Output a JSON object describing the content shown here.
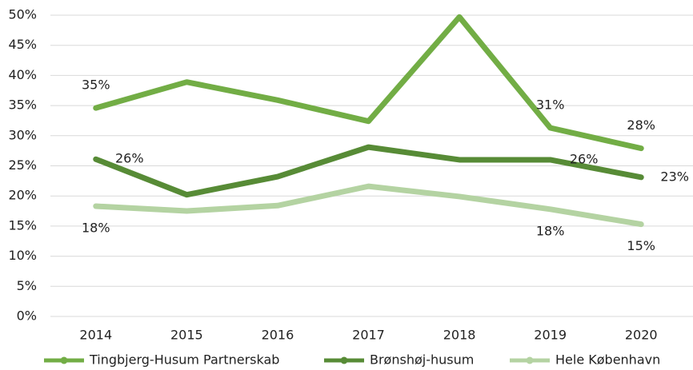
{
  "chart_data": {
    "type": "line",
    "categories": [
      "2014",
      "2015",
      "2016",
      "2017",
      "2018",
      "2019",
      "2020"
    ],
    "series": [
      {
        "name": "Tingbjerg-Husum Partnerskab",
        "color": "#72ad45",
        "values": [
          34.6,
          38.9,
          35.9,
          32.4,
          49.7,
          31.3,
          27.9
        ],
        "value_labels": [
          "35%",
          null,
          null,
          null,
          null,
          "31%",
          "28%"
        ]
      },
      {
        "name": "Brønshøj-husum",
        "color": "#578b36",
        "values": [
          26.1,
          20.2,
          23.2,
          28.1,
          26.0,
          26.0,
          23.1
        ],
        "value_labels": [
          "26%",
          null,
          null,
          null,
          null,
          "26%",
          "23%"
        ]
      },
      {
        "name": "Hele København",
        "color": "#b4d3a2",
        "values": [
          18.3,
          17.5,
          18.4,
          21.6,
          19.9,
          17.8,
          15.3
        ],
        "value_labels": [
          "18%",
          null,
          null,
          null,
          null,
          "18%",
          "15%"
        ]
      }
    ],
    "ylim": [
      0,
      50
    ],
    "yticks": [
      {
        "value": 0,
        "label": "0%"
      },
      {
        "value": 5,
        "label": "5%"
      },
      {
        "value": 10,
        "label": "10%"
      },
      {
        "value": 15,
        "label": "15%"
      },
      {
        "value": 20,
        "label": "20%"
      },
      {
        "value": 25,
        "label": "25%"
      },
      {
        "value": 30,
        "label": "30%"
      },
      {
        "value": 35,
        "label": "35%"
      },
      {
        "value": 40,
        "label": "40%"
      },
      {
        "value": 45,
        "label": "45%"
      },
      {
        "value": 50,
        "label": "50%"
      }
    ],
    "grid": true,
    "legend": "bottom"
  }
}
